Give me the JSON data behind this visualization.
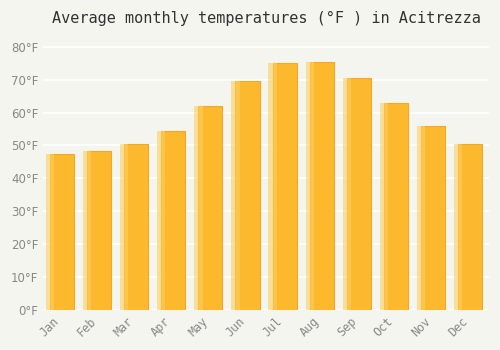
{
  "title": "Average monthly temperatures (°F ) in Acitrezza",
  "months": [
    "Jan",
    "Feb",
    "Mar",
    "Apr",
    "May",
    "Jun",
    "Jul",
    "Aug",
    "Sep",
    "Oct",
    "Nov",
    "Dec"
  ],
  "values": [
    47.5,
    48.2,
    50.5,
    54.5,
    62.0,
    69.5,
    75.0,
    75.5,
    70.5,
    63.0,
    56.0,
    50.5
  ],
  "bar_color": "#FDB92E",
  "bar_edge_color": "#F5A623",
  "background_color": "#F5F5F0",
  "plot_bg_color": "#F5F5F0",
  "grid_color": "#FFFFFF",
  "text_color": "#888888",
  "ylim": [
    0,
    83
  ],
  "yticks": [
    0,
    10,
    20,
    30,
    40,
    50,
    60,
    70,
    80
  ],
  "title_fontsize": 11,
  "tick_fontsize": 8.5
}
